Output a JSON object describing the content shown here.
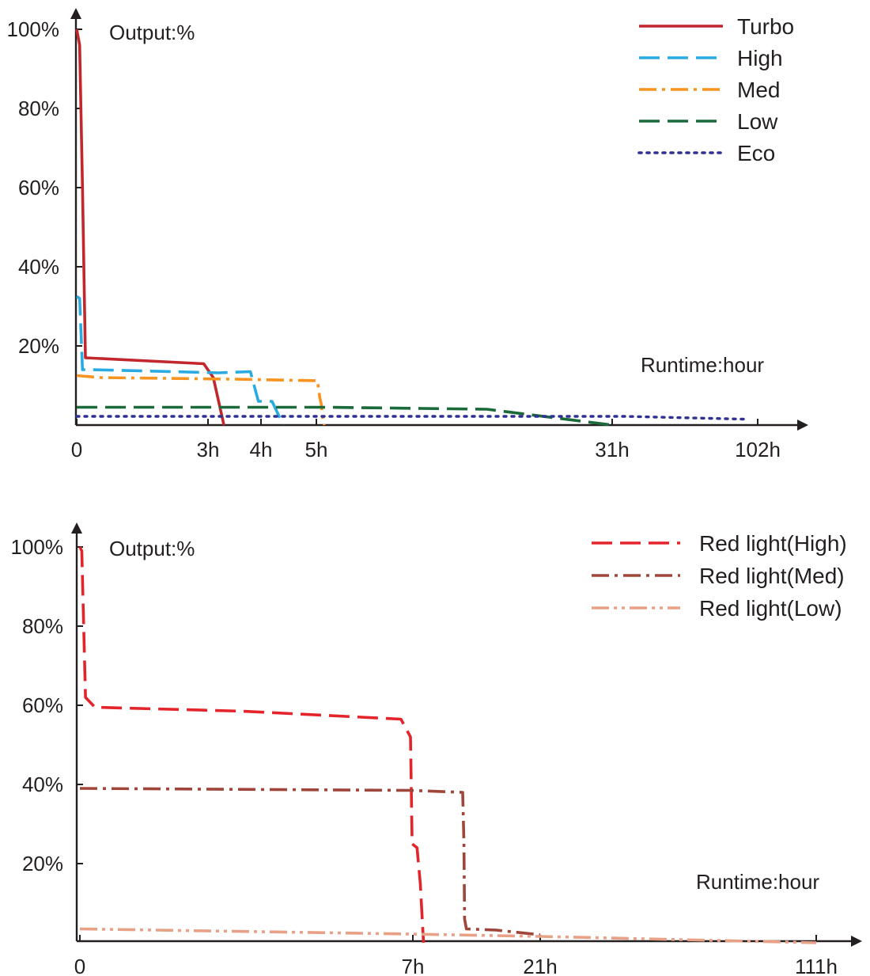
{
  "chart_data": [
    {
      "type": "line",
      "title": "",
      "ylabel": "Output:%",
      "xlabel": "Runtime:hour",
      "x_scale": "non-linear (ticks not evenly spaced)",
      "ylim": [
        0,
        100
      ],
      "y_ticks": [
        "100%",
        "80%",
        "60%",
        "40%",
        "20%"
      ],
      "x_ticks": [
        "0",
        "3h",
        "4h",
        "5h",
        "31h",
        "102h"
      ],
      "legend_position": "top-right",
      "colors": {
        "axis": "#231f20",
        "Turbo": "#c1272d",
        "High": "#29abe2",
        "Med": "#f7931e",
        "Low": "#1b6b3a",
        "Eco": "#2e3192"
      },
      "series": [
        {
          "name": "Turbo",
          "style": "solid",
          "points": [
            [
              0,
              100
            ],
            [
              0.05,
              96
            ],
            [
              0.1,
              60
            ],
            [
              0.15,
              17
            ],
            [
              2.9,
              15.5
            ],
            [
              3.1,
              12
            ],
            [
              3.3,
              0
            ]
          ]
        },
        {
          "name": "High",
          "style": "dashed",
          "points": [
            [
              0,
              32.5
            ],
            [
              0.05,
              32
            ],
            [
              0.1,
              14
            ],
            [
              0.3,
              14
            ],
            [
              3.2,
              13.2
            ],
            [
              3.8,
              13.5
            ],
            [
              3.95,
              6
            ],
            [
              4.2,
              6
            ],
            [
              4.4,
              0
            ]
          ]
        },
        {
          "name": "Med",
          "style": "dash-dot",
          "points": [
            [
              0,
              12.5
            ],
            [
              0.5,
              12
            ],
            [
              3.5,
              11.6
            ],
            [
              5.1,
              11.2
            ],
            [
              5.3,
              7
            ],
            [
              5.45,
              5
            ],
            [
              5.55,
              2
            ],
            [
              5.7,
              0
            ]
          ]
        },
        {
          "name": "Low",
          "style": "dashed",
          "points": [
            [
              0,
              4.5
            ],
            [
              6,
              4.5
            ],
            [
              20,
              4
            ],
            [
              31,
              0
            ]
          ]
        },
        {
          "name": "Eco",
          "style": "dotted",
          "points": [
            [
              0,
              2.2
            ],
            [
              40,
              2.2
            ],
            [
              102,
              1.5
            ]
          ]
        }
      ]
    },
    {
      "type": "line",
      "title": "",
      "ylabel": "Output:%",
      "xlabel": "Runtime:hour",
      "x_scale": "non-linear (ticks not evenly spaced)",
      "ylim": [
        0,
        100
      ],
      "y_ticks": [
        "100%",
        "80%",
        "60%",
        "40%",
        "20%"
      ],
      "x_ticks": [
        "0",
        "7h",
        "21h",
        "111h"
      ],
      "legend_position": "top-right",
      "colors": {
        "axis": "#231f20",
        "Red light(High)": "#e3242b",
        "Red light(Med)": "#a0453a",
        "Red light(Low)": "#e8a087"
      },
      "series": [
        {
          "name": "Red light(High)",
          "style": "dashed",
          "points": [
            [
              0,
              100
            ],
            [
              0.05,
              99
            ],
            [
              0.15,
              62
            ],
            [
              0.4,
              59.5
            ],
            [
              3.5,
              58.5
            ],
            [
              6.8,
              56.5
            ],
            [
              7.0,
              52
            ],
            [
              7.05,
              25
            ],
            [
              7.2,
              24
            ],
            [
              7.3,
              15
            ],
            [
              7.4,
              0
            ]
          ]
        },
        {
          "name": "Red light(Med)",
          "style": "dash-dot",
          "points": [
            [
              0,
              39
            ],
            [
              7,
              38.5
            ],
            [
              8.6,
              38
            ],
            [
              8.8,
              25
            ],
            [
              8.9,
              6
            ],
            [
              9.2,
              3.5
            ],
            [
              14,
              3.2
            ],
            [
              21,
              2
            ]
          ]
        },
        {
          "name": "Red light(Low)",
          "style": "dash-dot-dot",
          "points": [
            [
              0,
              3.5
            ],
            [
              7,
              2.2
            ],
            [
              21,
              1.6
            ],
            [
              111,
              0
            ]
          ]
        }
      ]
    }
  ]
}
